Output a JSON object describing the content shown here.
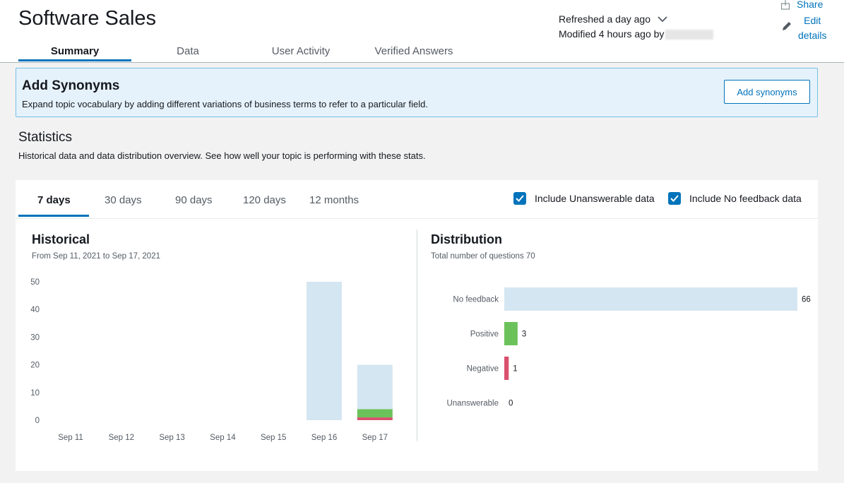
{
  "header": {
    "title": "Software Sales",
    "tabs": [
      "Summary",
      "Data",
      "User Activity",
      "Verified Answers"
    ],
    "active_tab": "Summary",
    "refreshed": "Refreshed a day ago",
    "modified": "Modified 4 hours ago by",
    "share_label": "Share",
    "edit_label_line1": "Edit",
    "edit_label_line2": "details"
  },
  "banner": {
    "title": "Add Synonyms",
    "description": "Expand topic vocabulary by adding different variations of business terms to refer to a particular field.",
    "button_label": "Add synonyms"
  },
  "statistics": {
    "title": "Statistics",
    "description": "Historical data and data distribution overview. See how well your topic is performing with these stats.",
    "range_tabs": [
      "7 days",
      "30 days",
      "90 days",
      "120 days",
      "12 months"
    ],
    "active_range": "7 days",
    "include_unanswerable_label": "Include Unanswerable data",
    "include_unanswerable_checked": true,
    "include_no_feedback_label": "Include No feedback data",
    "include_no_feedback_checked": true
  },
  "colors": {
    "accent": "#0073bb",
    "no_feedback": "#d4e6f1",
    "positive": "#6cc25a",
    "negative": "#d9506d"
  },
  "chart_data": [
    {
      "type": "bar",
      "title": "Historical",
      "subtitle": "From Sep 11, 2021 to Sep 17, 2021",
      "categories": [
        "Sep 11",
        "Sep 12",
        "Sep 13",
        "Sep 14",
        "Sep 15",
        "Sep 16",
        "Sep 17"
      ],
      "stacked": true,
      "series": [
        {
          "values": [
            0,
            0,
            0,
            0,
            0,
            0,
            1
          ]
        },
        {
          "values": [
            0,
            0,
            0,
            0,
            0,
            0,
            3
          ]
        },
        {
          "values": [
            0,
            0,
            0,
            0,
            0,
            50,
            16
          ]
        }
      ],
      "yticks": [
        0,
        10,
        20,
        30,
        40,
        50
      ],
      "ylim": [
        0,
        50
      ],
      "grid": false
    },
    {
      "type": "bar",
      "orientation": "horizontal",
      "title": "Distribution",
      "subtitle": "Total number of questions 70",
      "categories": [
        "No feedback",
        "Positive",
        "Negative",
        "Unanswerable"
      ],
      "values": [
        66,
        3,
        1,
        0
      ],
      "value_labels": [
        "66",
        "3",
        "1",
        "0"
      ],
      "grid": false
    }
  ]
}
